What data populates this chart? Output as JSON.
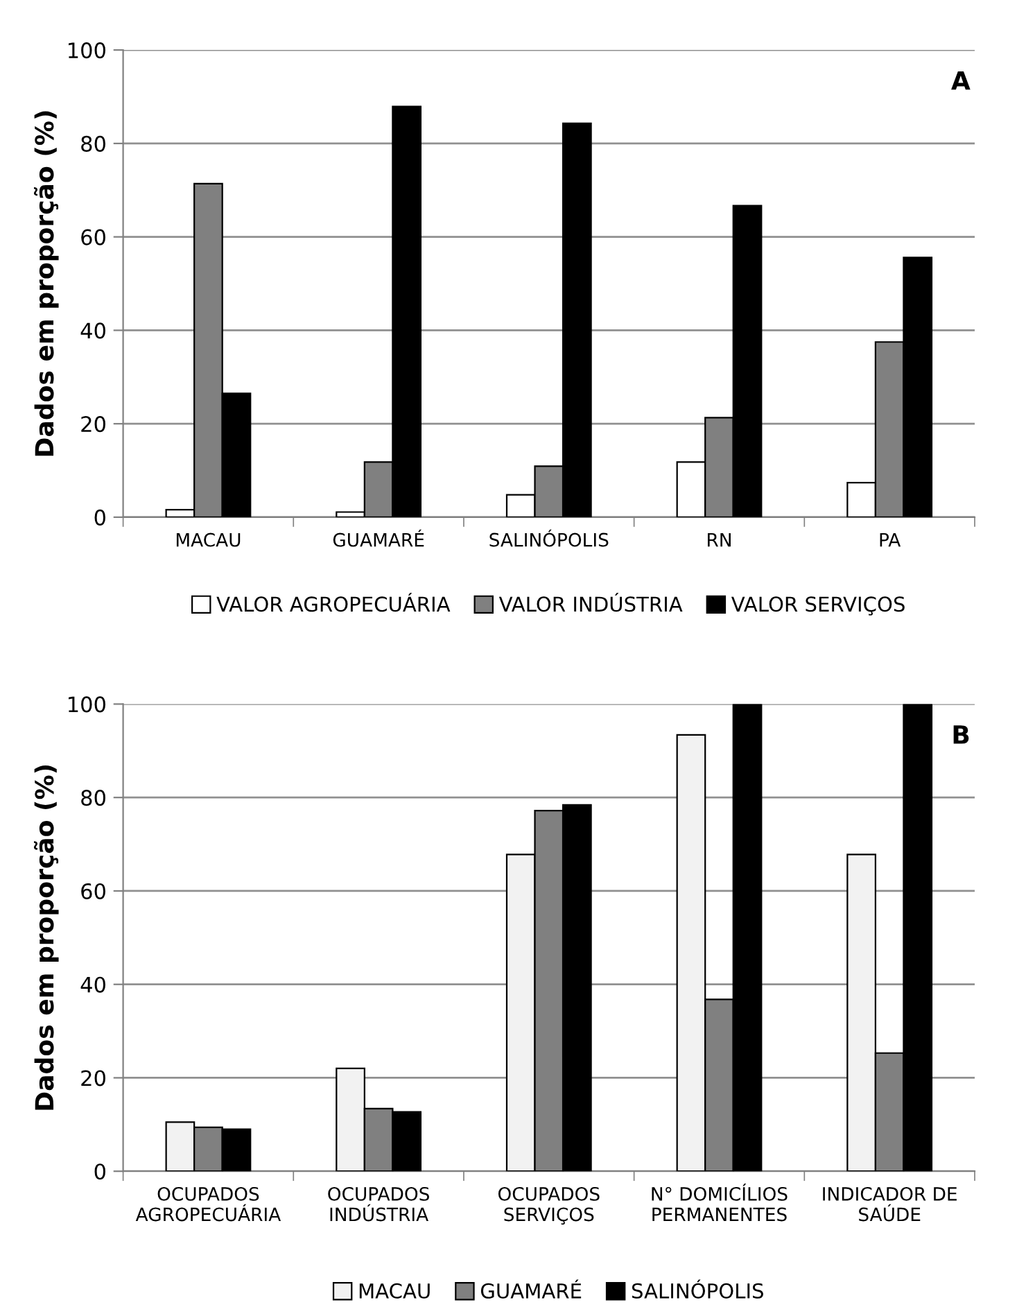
{
  "chart_data": [
    {
      "type": "bar",
      "ylabel": "Dados em proporção (%)",
      "annotations": [
        "A"
      ],
      "categories": [
        "MACAU",
        "GUAMARÉ",
        "SALINÓPOLIS",
        "RN",
        "PA"
      ],
      "ylim": [
        0,
        100
      ],
      "yticks": [
        0,
        20,
        40,
        60,
        80,
        100
      ],
      "grid": "y",
      "legend": "bottom",
      "series": [
        {
          "name": "VALOR AGROPECUÁRIA",
          "color": "#ffffff",
          "values": [
            1.6,
            1.1,
            4.8,
            11.8,
            7.4
          ]
        },
        {
          "name": "VALOR INDÚSTRIA",
          "color": "#808080",
          "values": [
            71.4,
            11.8,
            10.9,
            21.3,
            37.5
          ]
        },
        {
          "name": "VALOR SERVIÇOS",
          "color": "#000000",
          "values": [
            26.5,
            87.9,
            84.3,
            66.7,
            55.6
          ]
        }
      ]
    },
    {
      "type": "bar",
      "ylabel": "Dados em proporção (%)",
      "annotations": [
        "B"
      ],
      "categories": [
        "OCUPADOS\nAGROPECUÁRIA",
        "OCUPADOS\nINDÚSTRIA",
        "OCUPADOS\nSERVIÇOS",
        "N° DOMICÍLIOS\nPERMANENTES",
        "INDICADOR DE\nSAÚDE"
      ],
      "ylim": [
        0,
        100
      ],
      "yticks": [
        0,
        20,
        40,
        60,
        80,
        100
      ],
      "grid": "y",
      "legend": "bottom",
      "series": [
        {
          "name": "MACAU",
          "color": "#f2f2f2",
          "values": [
            10.5,
            22.0,
            67.8,
            93.4,
            67.8
          ]
        },
        {
          "name": "GUAMARÉ",
          "color": "#808080",
          "values": [
            9.4,
            13.4,
            77.2,
            36.8,
            25.3
          ]
        },
        {
          "name": "SALINÓPOLIS",
          "color": "#000000",
          "values": [
            9.0,
            12.7,
            78.4,
            100,
            100
          ]
        }
      ]
    }
  ]
}
